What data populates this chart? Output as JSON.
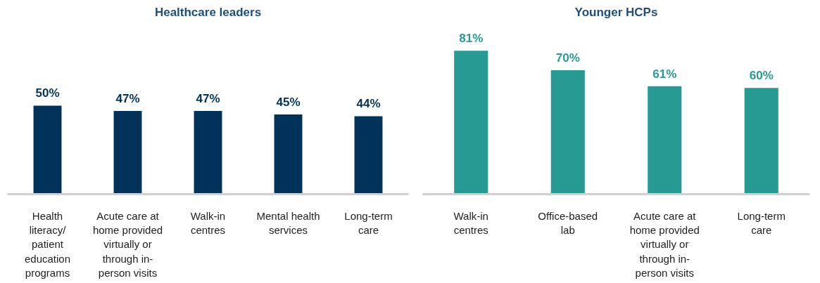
{
  "chart_data": [
    {
      "type": "bar",
      "title": "Healthcare leaders",
      "categories": [
        "Health literacy/patient education programs",
        "Acute care at home provided virtually or through in-person visits",
        "Walk-in centres",
        "Mental health services",
        "Long-term care"
      ],
      "values": [
        50,
        47,
        47,
        45,
        44
      ],
      "value_labels": [
        "50%",
        "47%",
        "47%",
        "45%",
        "44%"
      ],
      "color": "#00325a",
      "grid": false
    },
    {
      "type": "bar",
      "title": "Younger HCPs",
      "categories": [
        "Walk-in centres",
        "Office-based lab",
        "Acute care at home provided virtually or through in-person visits",
        "Long-term care"
      ],
      "values": [
        81,
        70,
        61,
        60
      ],
      "value_labels": [
        "81%",
        "70%",
        "61%",
        "60%"
      ],
      "color": "#269a93",
      "grid": false
    }
  ]
}
